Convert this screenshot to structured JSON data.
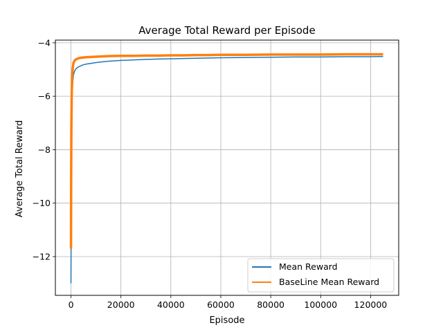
{
  "chart_data": {
    "type": "line",
    "title": "Average Total Reward per Episode",
    "xlabel": "Episode",
    "ylabel": "Average Total Reward",
    "xlim": [
      -6250,
      131250
    ],
    "ylim": [
      -13.45,
      -3.9
    ],
    "xticks": [
      0,
      20000,
      40000,
      60000,
      80000,
      100000,
      120000
    ],
    "yticks": [
      -12,
      -10,
      -8,
      -6,
      -4
    ],
    "grid": true,
    "legend_position": "lower-right",
    "series": [
      {
        "name": "Mean Reward",
        "color": "#1f77b4",
        "x": [
          0,
          60,
          150,
          300,
          500,
          700,
          1000,
          1500,
          2000,
          3000,
          4000,
          5000,
          6000,
          8000,
          10000,
          12000,
          15000,
          20000,
          25000,
          30000,
          35000,
          40000,
          45000,
          50000,
          55000,
          60000,
          70000,
          80000,
          90000,
          100000,
          110000,
          120000,
          125000
        ],
        "y": [
          -13.0,
          -10.5,
          -8.0,
          -6.6,
          -5.8,
          -5.5,
          -5.2,
          -5.05,
          -4.97,
          -4.9,
          -4.86,
          -4.82,
          -4.8,
          -4.77,
          -4.74,
          -4.72,
          -4.69,
          -4.66,
          -4.64,
          -4.62,
          -4.61,
          -4.6,
          -4.59,
          -4.58,
          -4.57,
          -4.56,
          -4.55,
          -4.54,
          -4.53,
          -4.53,
          -4.52,
          -4.52,
          -4.51
        ]
      },
      {
        "name": "BaseLine Mean Reward",
        "color": "#ff7f0e",
        "x": [
          0,
          60,
          150,
          300,
          500,
          700,
          1000,
          1500,
          2000,
          3000,
          4000,
          5000,
          6000,
          8000,
          10000,
          12000,
          15000,
          20000,
          25000,
          30000,
          35000,
          40000,
          45000,
          50000,
          55000,
          60000,
          70000,
          80000,
          90000,
          100000,
          110000,
          120000,
          125000
        ],
        "y": [
          -11.7,
          -9.5,
          -7.2,
          -5.9,
          -5.3,
          -4.95,
          -4.75,
          -4.66,
          -4.62,
          -4.58,
          -4.56,
          -4.55,
          -4.54,
          -4.53,
          -4.52,
          -4.51,
          -4.5,
          -4.49,
          -4.49,
          -4.48,
          -4.48,
          -4.47,
          -4.47,
          -4.46,
          -4.46,
          -4.45,
          -4.45,
          -4.44,
          -4.44,
          -4.44,
          -4.43,
          -4.43,
          -4.43
        ]
      }
    ]
  }
}
